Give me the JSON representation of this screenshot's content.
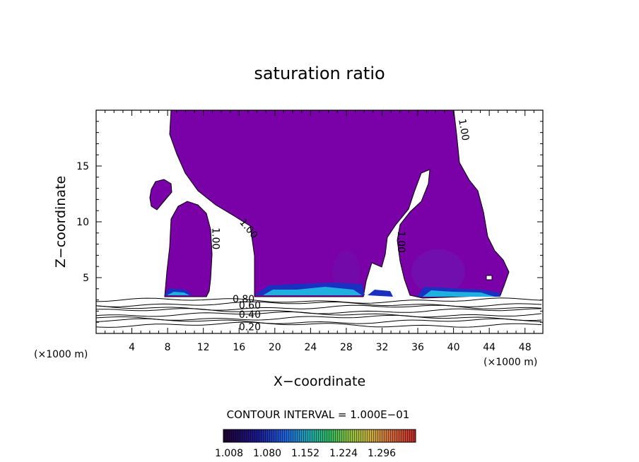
{
  "chart_data": {
    "type": "contour",
    "title": "saturation ratio",
    "xlabel": "X−coordinate",
    "ylabel": "Z−coordinate",
    "x_unit_left": "(×1000 m)",
    "x_unit_right": "(×1000 m)",
    "xlim": [
      0,
      50
    ],
    "ylim": [
      0,
      20
    ],
    "x_ticks": [
      {
        "value": 4,
        "label": "4"
      },
      {
        "value": 8,
        "label": "8"
      },
      {
        "value": 12,
        "label": "12"
      },
      {
        "value": 16,
        "label": "16"
      },
      {
        "value": 20,
        "label": "20"
      },
      {
        "value": 24,
        "label": "24"
      },
      {
        "value": 28,
        "label": "28"
      },
      {
        "value": 32,
        "label": "32"
      },
      {
        "value": 36,
        "label": "36"
      },
      {
        "value": 40,
        "label": "40"
      },
      {
        "value": 44,
        "label": "44"
      },
      {
        "value": 48,
        "label": "48"
      }
    ],
    "y_ticks": [
      {
        "value": 5,
        "label": "5"
      },
      {
        "value": 10,
        "label": "10"
      },
      {
        "value": 15,
        "label": "15"
      }
    ],
    "contour_interval_text": "CONTOUR INTERVAL = 1.000E−01",
    "contour_labels": [
      {
        "text": "1.00",
        "x": 13.0,
        "y": 8.5,
        "angle": 90
      },
      {
        "text": "1.00",
        "x": 16.8,
        "y": 9.2,
        "angle": 50
      },
      {
        "text": "1.00",
        "x": 33.8,
        "y": 8.2,
        "angle": 90
      },
      {
        "text": "1.00",
        "x": 40.8,
        "y": 18.2,
        "angle": 80
      },
      {
        "text": "0.80",
        "x": 16.5,
        "y": 2.8,
        "angle": 0
      },
      {
        "text": "0.60",
        "x": 17.2,
        "y": 2.2,
        "angle": 0
      },
      {
        "text": "0.40",
        "x": 17.2,
        "y": 1.4,
        "angle": 0
      },
      {
        "text": "0.20",
        "x": 17.2,
        "y": 0.3,
        "angle": 0
      }
    ],
    "contour_lines": [
      0.2,
      0.3,
      0.4,
      0.5,
      0.6,
      0.7,
      0.8,
      0.9
    ],
    "colorbar": {
      "ticks": [
        "1.008",
        "1.080",
        "1.152",
        "1.224",
        "1.296"
      ],
      "colors": [
        "#200030",
        "#1a1a80",
        "#2050d0",
        "#20a0c0",
        "#30c070",
        "#80c040",
        "#c0c040",
        "#d09040",
        "#d06040",
        "#c03030"
      ]
    },
    "fill_color": "#7a00a8"
  }
}
